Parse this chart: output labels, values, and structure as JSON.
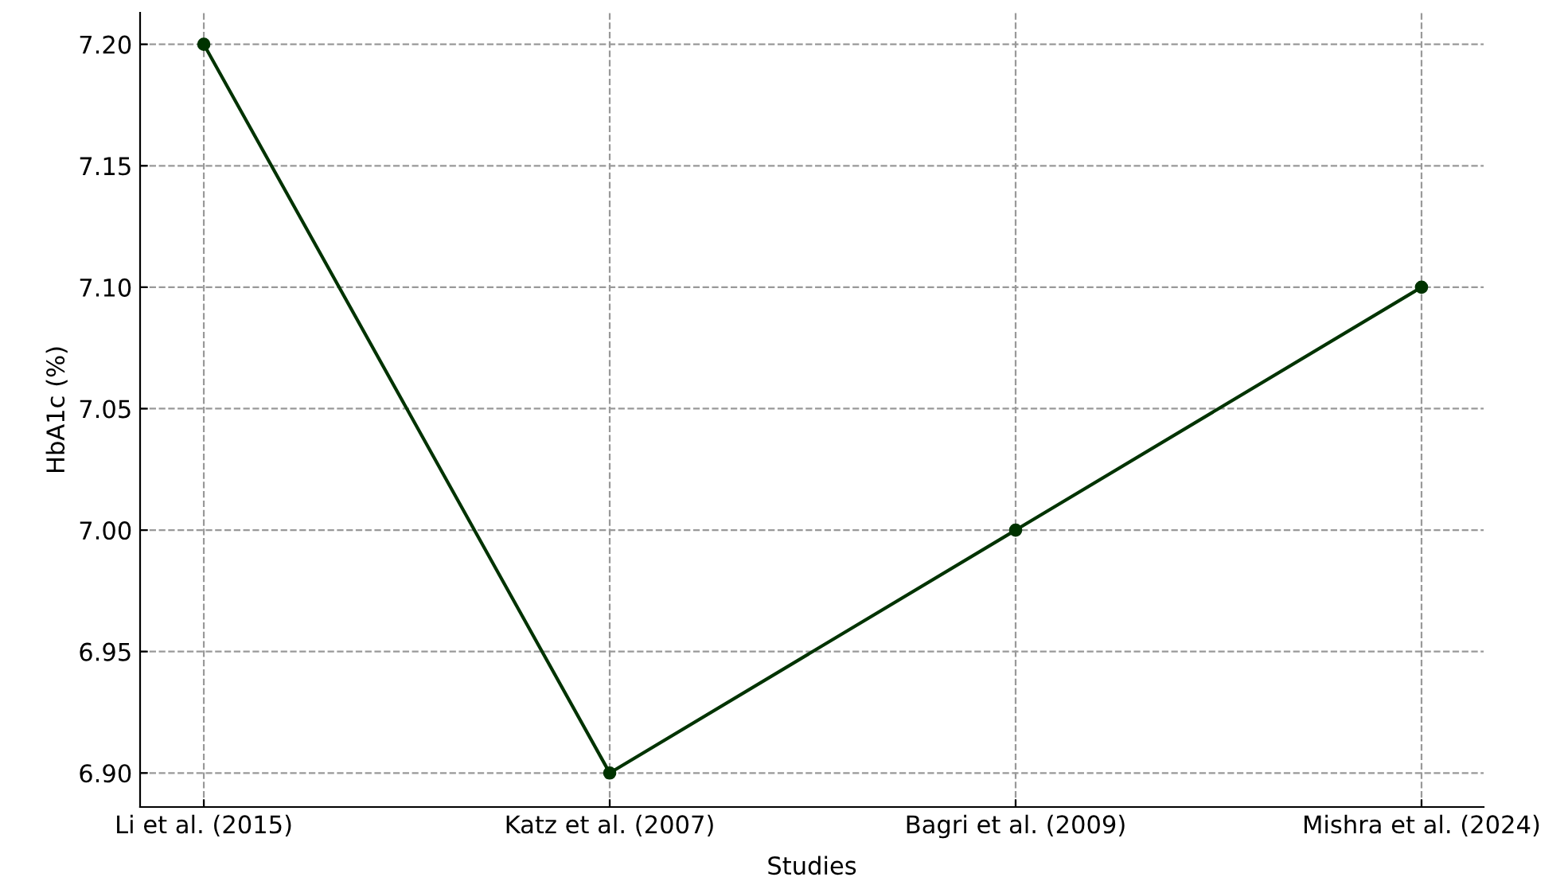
{
  "chart_data": {
    "type": "line",
    "xlabel": "Studies",
    "ylabel": "HbA1c (%)",
    "categories": [
      "Li et al. (2015)",
      "Katz et al. (2007)",
      "Bagri et al. (2009)",
      "Mishra et al. (2024)"
    ],
    "series": [
      {
        "color": "#003300",
        "values": [
          7.2,
          6.9,
          7.0,
          7.1
        ]
      }
    ],
    "ylim": [
      6.886,
      7.213
    ],
    "yticks": [
      {
        "value": 6.9,
        "label": "6.90"
      },
      {
        "value": 6.95,
        "label": "6.95"
      },
      {
        "value": 7.0,
        "label": "7.00"
      },
      {
        "value": 7.05,
        "label": "7.05"
      },
      {
        "value": 7.1,
        "label": "7.10"
      },
      {
        "value": 7.15,
        "label": "7.15"
      },
      {
        "value": 7.2,
        "label": "7.20"
      }
    ],
    "grid": true,
    "marker": "circle",
    "line_style": "solid"
  }
}
